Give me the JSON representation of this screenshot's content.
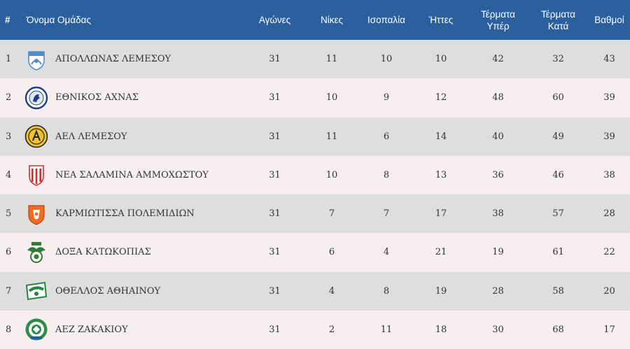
{
  "headers": {
    "pos": "#",
    "team": "Όνομα Ομάδας",
    "played": "Αγώνες",
    "wins": "Νίκες",
    "draws": "Ισοπαλία",
    "losses": "Ήττες",
    "goals_for_1": "Τέρματα",
    "goals_for_2": "Υπέρ",
    "goals_against_1": "Τέρματα",
    "goals_against_2": "Κατά",
    "points": "Βαθμοί"
  },
  "colors": {
    "header_bg": "#2b5f9e",
    "row_odd": "#dedede",
    "row_even": "#f6eeef"
  },
  "rows": [
    {
      "pos": "1",
      "team": "ΑΠΟΛΛΩΝΑΣ ΛΕΜΕΣΟΥ",
      "crest": "apollon-crest-icon",
      "played": "31",
      "wins": "11",
      "draws": "10",
      "losses": "10",
      "gf": "42",
      "ga": "32",
      "pts": "43"
    },
    {
      "pos": "2",
      "team": "ΕΘΝΙΚΟΣ ΑΧΝΑΣ",
      "crest": "ethnikos-crest-icon",
      "played": "31",
      "wins": "10",
      "draws": "9",
      "losses": "12",
      "gf": "48",
      "ga": "60",
      "pts": "39"
    },
    {
      "pos": "3",
      "team": "ΑΕΛ ΛΕΜΕΣΟΥ",
      "crest": "ael-crest-icon",
      "played": "31",
      "wins": "11",
      "draws": "6",
      "losses": "14",
      "gf": "40",
      "ga": "49",
      "pts": "39"
    },
    {
      "pos": "4",
      "team": "ΝΕΑ ΣΑΛΑΜΙΝΑ ΑΜΜΟΧΩΣΤΟΥ",
      "crest": "nea-salamina-crest-icon",
      "played": "31",
      "wins": "10",
      "draws": "8",
      "losses": "13",
      "gf": "36",
      "ga": "46",
      "pts": "38"
    },
    {
      "pos": "5",
      "team": "ΚΑΡΜΙΩΤΙΣΣΑ ΠΟΛΕΜΙΔΙΩΝ",
      "crest": "karmiotissa-crest-icon",
      "played": "31",
      "wins": "7",
      "draws": "7",
      "losses": "17",
      "gf": "38",
      "ga": "57",
      "pts": "28"
    },
    {
      "pos": "6",
      "team": "ΔΟΞΑ ΚΑΤΩΚΟΠΙΑΣ",
      "crest": "doxa-crest-icon",
      "played": "31",
      "wins": "6",
      "draws": "4",
      "losses": "21",
      "gf": "19",
      "ga": "61",
      "pts": "22"
    },
    {
      "pos": "7",
      "team": "ΟΘΕΛΛΟΣ ΑΘΗΑΙΝΟΥ",
      "crest": "othellos-crest-icon",
      "played": "31",
      "wins": "4",
      "draws": "8",
      "losses": "19",
      "gf": "28",
      "ga": "58",
      "pts": "20"
    },
    {
      "pos": "8",
      "team": "ΑΕΖ ΖΑΚΑΚΙΟΥ",
      "crest": "aez-crest-icon",
      "played": "31",
      "wins": "2",
      "draws": "11",
      "losses": "18",
      "gf": "30",
      "ga": "68",
      "pts": "17"
    }
  ]
}
